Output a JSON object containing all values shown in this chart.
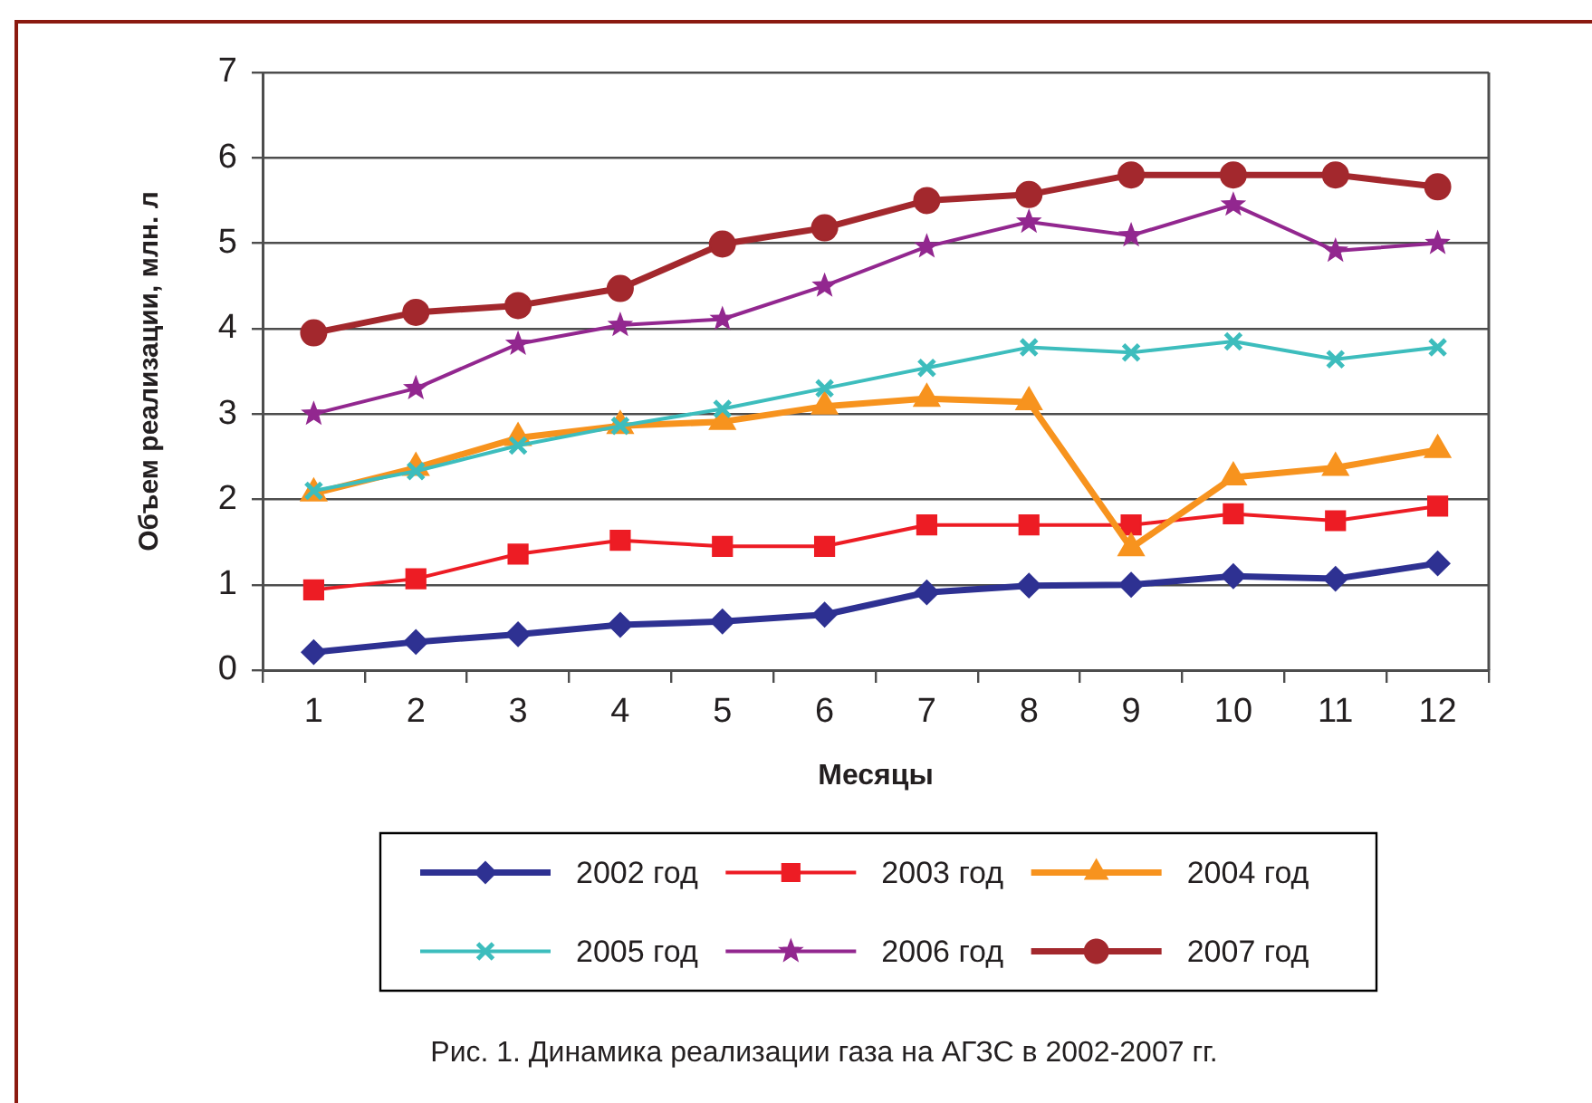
{
  "chart_data": {
    "type": "line",
    "title": "Рис. 1. Динамика реализации газа на АГЗС в 2002-2007 гг.",
    "xlabel": "Месяцы",
    "ylabel": "Объем реализации, млн. л",
    "x": [
      1,
      2,
      3,
      4,
      5,
      6,
      7,
      8,
      9,
      10,
      11,
      12
    ],
    "series": [
      {
        "name": "2002 год",
        "color": "#2e3192",
        "marker": "diamond",
        "values": [
          0.21,
          0.33,
          0.42,
          0.53,
          0.57,
          0.65,
          0.91,
          0.99,
          1.0,
          1.1,
          1.07,
          1.25
        ]
      },
      {
        "name": "2003 год",
        "color": "#ed1c24",
        "marker": "square",
        "values": [
          0.94,
          1.07,
          1.36,
          1.52,
          1.45,
          1.45,
          1.7,
          1.7,
          1.7,
          1.83,
          1.75,
          1.92
        ]
      },
      {
        "name": "2004 год",
        "color": "#f7931e",
        "marker": "triangle",
        "values": [
          2.07,
          2.37,
          2.72,
          2.86,
          2.91,
          3.09,
          3.18,
          3.14,
          1.43,
          2.26,
          2.37,
          2.58
        ]
      },
      {
        "name": "2005 год",
        "color": "#3dbdbd",
        "marker": "cross",
        "values": [
          2.1,
          2.33,
          2.63,
          2.86,
          3.06,
          3.3,
          3.54,
          3.78,
          3.72,
          3.85,
          3.64,
          3.78
        ]
      },
      {
        "name": "2006 год",
        "color": "#92278f",
        "marker": "star",
        "values": [
          3.0,
          3.3,
          3.82,
          4.04,
          4.11,
          4.5,
          4.96,
          5.25,
          5.09,
          5.45,
          4.91,
          5.0
        ]
      },
      {
        "name": "2007 год",
        "color": "#a3282d",
        "marker": "circle",
        "values": [
          3.95,
          4.19,
          4.27,
          4.47,
          4.99,
          5.18,
          5.5,
          5.57,
          5.8,
          5.8,
          5.8,
          5.66
        ]
      }
    ],
    "xlim": [
      0.5,
      12.5
    ],
    "xticks": [
      {
        "value": 0.5,
        "label": null
      },
      1,
      {
        "value": 1.5,
        "label": null
      },
      2,
      {
        "value": 2.5,
        "label": null
      },
      3,
      {
        "value": 3.5,
        "label": null
      },
      4,
      {
        "value": 4.5,
        "label": null
      },
      5,
      {
        "value": 5.5,
        "label": null
      },
      6,
      {
        "value": 6.5,
        "label": null
      },
      7,
      {
        "value": 7.5,
        "label": null
      },
      8,
      {
        "value": 8.5,
        "label": null
      },
      9,
      {
        "value": 9.5,
        "label": null
      },
      10,
      {
        "value": 10.5,
        "label": null
      },
      11,
      {
        "value": 11.5,
        "label": null
      },
      12,
      {
        "value": 12.5,
        "label": null
      }
    ],
    "ylim": [
      0,
      7
    ],
    "yticks": [
      0,
      1,
      2,
      3,
      4,
      5,
      6,
      7
    ],
    "grid": "y",
    "legend": "bottom"
  }
}
